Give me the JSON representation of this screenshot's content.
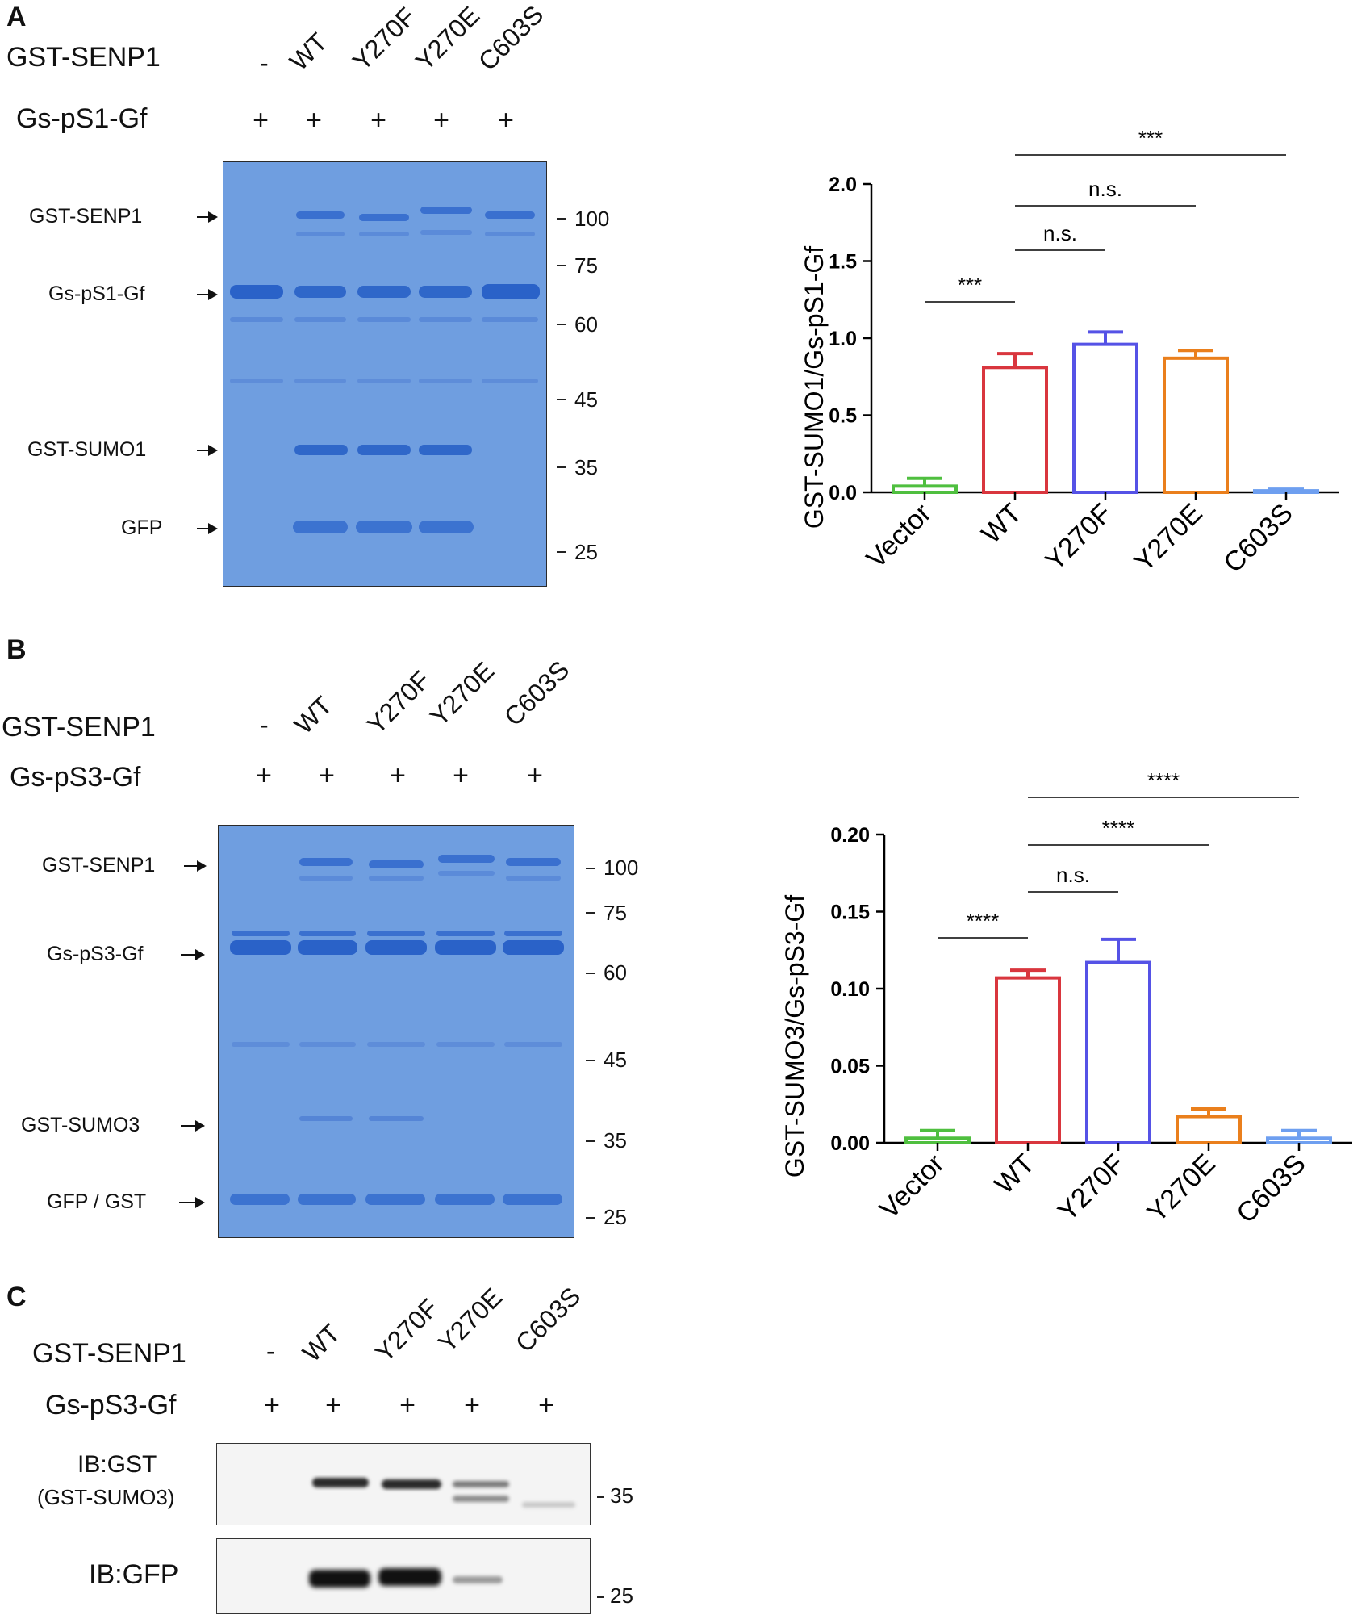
{
  "panelA": {
    "letter": "A",
    "row1_label": "GST-SENP1",
    "row2_label": "Gs-pS1-Gf",
    "lanes": [
      "-",
      "WT",
      "Y270F",
      "Y270E",
      "C603S"
    ],
    "plus": [
      "+",
      "+",
      "+",
      "+",
      "+"
    ],
    "gel_labels": [
      "GST-SENP1",
      "Gs-pS1-Gf",
      "GST-SUMO1",
      "GFP"
    ],
    "mw_markers": [
      "100",
      "75",
      "60",
      "45",
      "35",
      "25"
    ]
  },
  "panelB": {
    "letter": "B",
    "row1_label": "GST-SENP1",
    "row2_label": "Gs-pS3-Gf",
    "lanes": [
      "-",
      "WT",
      "Y270F",
      "Y270E",
      "C603S"
    ],
    "plus": [
      "+",
      "+",
      "+",
      "+",
      "+"
    ],
    "gel_labels": [
      "GST-SENP1",
      "Gs-pS3-Gf",
      "GST-SUMO3",
      "GFP / GST"
    ],
    "mw_markers": [
      "100",
      "75",
      "60",
      "45",
      "35",
      "25"
    ]
  },
  "panelC": {
    "letter": "C",
    "row1_label": "GST-SENP1",
    "row2_label": "Gs-pS3-Gf",
    "lanes": [
      "-",
      "WT",
      "Y270F",
      "Y270E",
      "C603S"
    ],
    "plus": [
      "+",
      "+",
      "+",
      "+",
      "+"
    ],
    "blot1_label_line1": "IB:GST",
    "blot1_label_line2": "(GST-SUMO3)",
    "blot2_label": "IB:GFP",
    "blot1_mw": "35",
    "blot2_mw": "25"
  },
  "colors": {
    "vector": "#4fbf3f",
    "wt": "#d9363e",
    "y270f": "#5552e6",
    "y270e": "#ea7f1c",
    "c603s": "#6e9ff0",
    "gel": "#6f9ee0",
    "band": "#2f67c9"
  },
  "chart_data": [
    {
      "type": "bar",
      "ylabel": "GST-SUMO1/Gs-pS1-Gf",
      "categories": [
        "Vector",
        "WT",
        "Y270F",
        "Y270E",
        "C603S"
      ],
      "values": [
        0.04,
        0.81,
        0.96,
        0.87,
        0.01
      ],
      "errors": [
        0.05,
        0.09,
        0.08,
        0.05,
        0.01
      ],
      "ylim": [
        0,
        2.0
      ],
      "yticks": [
        "0.0",
        "0.5",
        "1.0",
        "1.5",
        "2.0"
      ],
      "ytick_values": [
        0,
        0.5,
        1.0,
        1.5,
        2.0
      ],
      "significance": [
        {
          "from": 0,
          "to": 1,
          "label": "***"
        },
        {
          "from": 1,
          "to": 2,
          "label": "n.s."
        },
        {
          "from": 1,
          "to": 3,
          "label": "n.s."
        },
        {
          "from": 1,
          "to": 4,
          "label": "***"
        }
      ]
    },
    {
      "type": "bar",
      "ylabel": "GST-SUMO3/Gs-pS3-Gf",
      "categories": [
        "Vector",
        "WT",
        "Y270F",
        "Y270E",
        "C603S"
      ],
      "values": [
        0.003,
        0.107,
        0.117,
        0.017,
        0.003
      ],
      "errors": [
        0.005,
        0.005,
        0.015,
        0.005,
        0.005
      ],
      "ylim": [
        0,
        0.2
      ],
      "yticks": [
        "0.00",
        "0.05",
        "0.10",
        "0.15",
        "0.20"
      ],
      "ytick_values": [
        0,
        0.05,
        0.1,
        0.15,
        0.2
      ],
      "significance": [
        {
          "from": 0,
          "to": 1,
          "label": "****"
        },
        {
          "from": 1,
          "to": 2,
          "label": "n.s."
        },
        {
          "from": 1,
          "to": 3,
          "label": "****"
        },
        {
          "from": 1,
          "to": 4,
          "label": "****"
        }
      ]
    }
  ]
}
